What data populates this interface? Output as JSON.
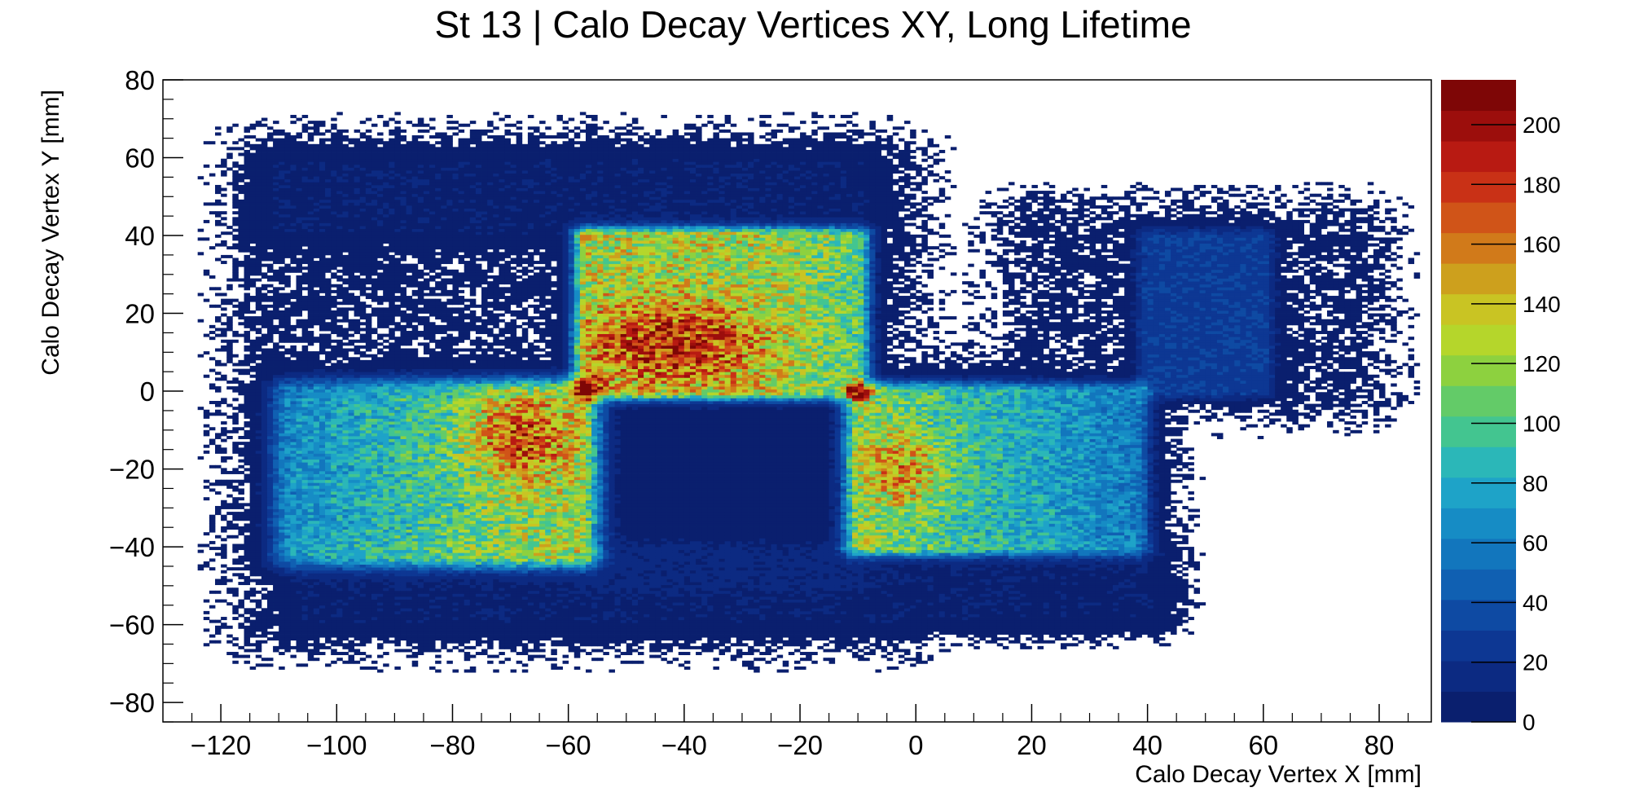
{
  "chart_data": {
    "type": "heatmap",
    "title": "St 13 | Calo Decay Vertices XY, Long Lifetime",
    "xlabel": "Calo Decay Vertex X [mm]",
    "ylabel": "Calo Decay Vertex Y [mm]",
    "xlim": [
      -130,
      89
    ],
    "ylim": [
      -85,
      80
    ],
    "zlim": [
      0,
      215
    ],
    "x_ticks": [
      -120,
      -100,
      -80,
      -60,
      -40,
      -20,
      0,
      20,
      40,
      60,
      80
    ],
    "x_tick_labels": [
      "−120",
      "−100",
      "−80",
      "−60",
      "−40",
      "−20",
      "0",
      "20",
      "40",
      "60",
      "80"
    ],
    "y_ticks": [
      -80,
      -60,
      -40,
      -20,
      0,
      20,
      40,
      60,
      80
    ],
    "y_tick_labels": [
      "−80",
      "−60",
      "−40",
      "−20",
      "0",
      "20",
      "40",
      "60",
      "80"
    ],
    "z_ticks": [
      0,
      20,
      40,
      60,
      80,
      100,
      120,
      140,
      160,
      180,
      200
    ],
    "z_tick_labels": [
      "0",
      "20",
      "40",
      "60",
      "80",
      "100",
      "120",
      "140",
      "160",
      "180",
      "200"
    ],
    "palette": [
      "#0a1f6e",
      "#0c2a82",
      "#0d3793",
      "#0e4aa3",
      "#1060b2",
      "#1276bd",
      "#168cc5",
      "#1ea3c8",
      "#2bb7b8",
      "#43c590",
      "#63cb68",
      "#8dd13f",
      "#b5d62b",
      "#c9c423",
      "#cda01d",
      "#d17a1a",
      "#d05418",
      "#c93116",
      "#b81a12",
      "#9c0e0c",
      "#7e0606"
    ],
    "regions": [
      {
        "name": "upper-center block",
        "x": [
          -57,
          -10
        ],
        "y": [
          0,
          40
        ],
        "level": 150
      },
      {
        "name": "lower-left block",
        "x": [
          -108,
          -58
        ],
        "y": [
          -42,
          0
        ],
        "level": 115
      },
      {
        "name": "lower-right block",
        "x": [
          -10,
          38
        ],
        "y": [
          -40,
          0
        ],
        "level": 100
      },
      {
        "name": "upper-right block",
        "x": [
          40,
          60
        ],
        "y": [
          0,
          40
        ],
        "level": 25
      },
      {
        "name": "upper band halo",
        "x": [
          -110,
          -10
        ],
        "y": [
          42,
          58
        ],
        "level": 6
      },
      {
        "name": "lower band",
        "x": [
          -105,
          40
        ],
        "y": [
          -58,
          -42
        ],
        "level": 6
      },
      {
        "name": "central gap",
        "x": [
          -58,
          -10
        ],
        "y": [
          -50,
          0
        ],
        "level": 3
      }
    ]
  }
}
